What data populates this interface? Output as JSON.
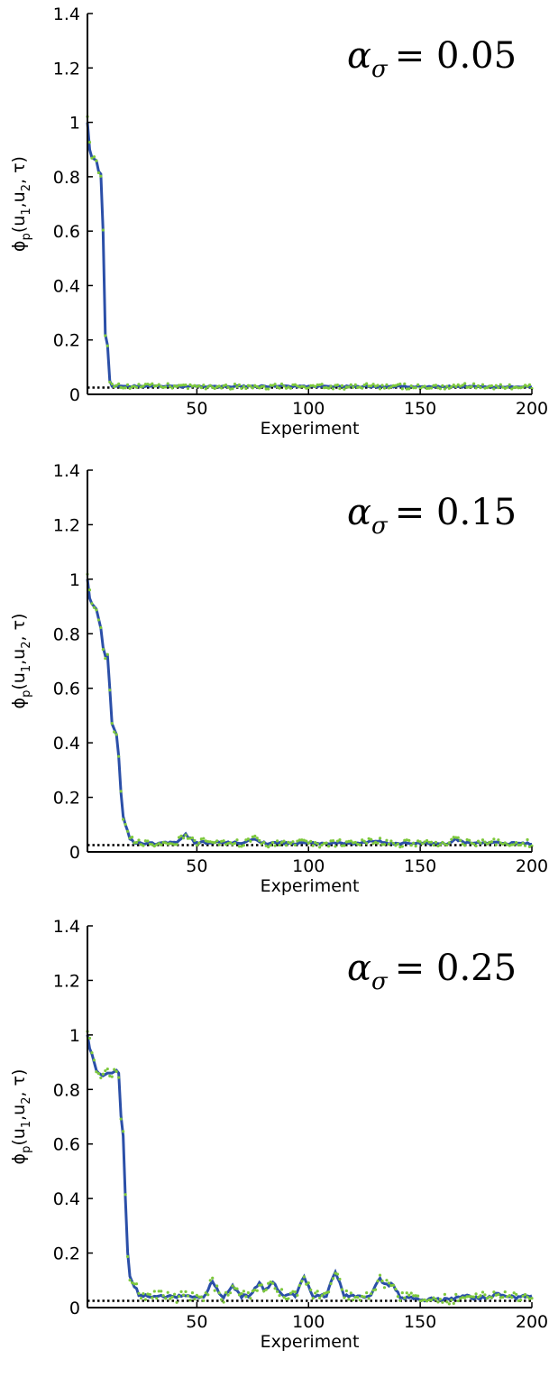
{
  "figure": {
    "ylabel": {
      "phi": "ϕ",
      "p": "p",
      "open": "(u",
      "one": "1",
      "comma1": ",u",
      "two": "2",
      "rest": ", τ)"
    },
    "xlabel": "Experiment"
  },
  "colors": {
    "estimate_line": "#2b4fa8",
    "measured_dots": "#7dc83c",
    "optimum_dotted": "#000000"
  },
  "chart_data": [
    {
      "type": "line",
      "annotation": {
        "alpha": "α",
        "sigma": "σ",
        "equals_value": "= 0.05"
      },
      "xlabel": "Experiment",
      "ylabel": "ϕp(u1,u2, τ)",
      "xlim": [
        1,
        200
      ],
      "ylim": [
        0,
        1.4
      ],
      "x_ticks": [
        50,
        100,
        150,
        200
      ],
      "y_ticks": [
        0,
        0.2,
        0.4,
        0.6,
        0.8,
        1,
        1.2,
        1.4
      ],
      "optimum": 0.025,
      "noise": 0.006,
      "bumps": [],
      "keypoints": [
        [
          1,
          1.0
        ],
        [
          2,
          0.9
        ],
        [
          3,
          0.87
        ],
        [
          5,
          0.86
        ],
        [
          6,
          0.82
        ],
        [
          7,
          0.81
        ],
        [
          8,
          0.6
        ],
        [
          9,
          0.22
        ],
        [
          10,
          0.18
        ],
        [
          11,
          0.05
        ],
        [
          12,
          0.03
        ],
        [
          200,
          0.028
        ]
      ],
      "grid": false,
      "series": [
        {
          "name": "",
          "style": "solid line"
        },
        {
          "name": "",
          "style": "dots"
        },
        {
          "name": "",
          "style": "dotted reference"
        }
      ]
    },
    {
      "type": "line",
      "annotation": {
        "alpha": "α",
        "sigma": "σ",
        "equals_value": "= 0.15"
      },
      "xlabel": "Experiment",
      "ylabel": "ϕp(u1,u2, τ)",
      "xlim": [
        1,
        200
      ],
      "ylim": [
        0,
        1.4
      ],
      "x_ticks": [
        50,
        100,
        150,
        200
      ],
      "y_ticks": [
        0,
        0.2,
        0.4,
        0.6,
        0.8,
        1,
        1.2,
        1.4
      ],
      "optimum": 0.025,
      "noise": 0.008,
      "bumps": [
        [
          45,
          0.03
        ],
        [
          75,
          0.015
        ],
        [
          130,
          0.01
        ],
        [
          166,
          0.015
        ]
      ],
      "keypoints": [
        [
          1,
          1.0
        ],
        [
          2,
          0.93
        ],
        [
          3,
          0.91
        ],
        [
          5,
          0.89
        ],
        [
          7,
          0.82
        ],
        [
          8,
          0.75
        ],
        [
          9,
          0.72
        ],
        [
          10,
          0.72
        ],
        [
          11,
          0.6
        ],
        [
          12,
          0.47
        ],
        [
          13,
          0.45
        ],
        [
          14,
          0.43
        ],
        [
          15,
          0.35
        ],
        [
          16,
          0.22
        ],
        [
          17,
          0.13
        ],
        [
          18,
          0.1
        ],
        [
          19,
          0.08
        ],
        [
          20,
          0.05
        ],
        [
          22,
          0.035
        ],
        [
          30,
          0.03
        ],
        [
          40,
          0.035
        ],
        [
          50,
          0.035
        ],
        [
          100,
          0.032
        ],
        [
          150,
          0.032
        ],
        [
          200,
          0.032
        ]
      ],
      "grid": false,
      "series": [
        {
          "name": "",
          "style": "solid line"
        },
        {
          "name": "",
          "style": "dots"
        },
        {
          "name": "",
          "style": "dotted reference"
        }
      ]
    },
    {
      "type": "line",
      "annotation": {
        "alpha": "α",
        "sigma": "σ",
        "equals_value": "= 0.25"
      },
      "xlabel": "Experiment",
      "ylabel": "ϕp(u1,u2, τ)",
      "xlim": [
        1,
        200
      ],
      "ylim": [
        0,
        1.4
      ],
      "x_ticks": [
        50,
        100,
        150,
        200
      ],
      "y_ticks": [
        0,
        0.2,
        0.4,
        0.6,
        0.8,
        1,
        1.2,
        1.4
      ],
      "optimum": 0.025,
      "noise": 0.012,
      "bumps": [
        [
          57,
          0.06
        ],
        [
          66,
          0.04
        ],
        [
          78,
          0.05
        ],
        [
          84,
          0.05
        ],
        [
          98,
          0.07
        ],
        [
          112,
          0.09
        ],
        [
          132,
          0.07
        ],
        [
          137,
          0.05
        ],
        [
          170,
          0.015
        ],
        [
          185,
          0.015
        ]
      ],
      "keypoints": [
        [
          1,
          1.0
        ],
        [
          2,
          0.95
        ],
        [
          3,
          0.93
        ],
        [
          4,
          0.9
        ],
        [
          5,
          0.87
        ],
        [
          6,
          0.86
        ],
        [
          8,
          0.85
        ],
        [
          10,
          0.86
        ],
        [
          12,
          0.86
        ],
        [
          14,
          0.87
        ],
        [
          15,
          0.86
        ],
        [
          16,
          0.7
        ],
        [
          17,
          0.63
        ],
        [
          18,
          0.4
        ],
        [
          19,
          0.2
        ],
        [
          20,
          0.12
        ],
        [
          21,
          0.1
        ],
        [
          22,
          0.08
        ],
        [
          24,
          0.05
        ],
        [
          28,
          0.04
        ],
        [
          40,
          0.04
        ],
        [
          60,
          0.04
        ],
        [
          100,
          0.045
        ],
        [
          140,
          0.04
        ],
        [
          150,
          0.03
        ],
        [
          160,
          0.03
        ],
        [
          175,
          0.035
        ],
        [
          200,
          0.04
        ]
      ],
      "grid": false,
      "series": [
        {
          "name": "",
          "style": "solid line"
        },
        {
          "name": "",
          "style": "dots"
        },
        {
          "name": "",
          "style": "dotted reference"
        }
      ]
    }
  ]
}
